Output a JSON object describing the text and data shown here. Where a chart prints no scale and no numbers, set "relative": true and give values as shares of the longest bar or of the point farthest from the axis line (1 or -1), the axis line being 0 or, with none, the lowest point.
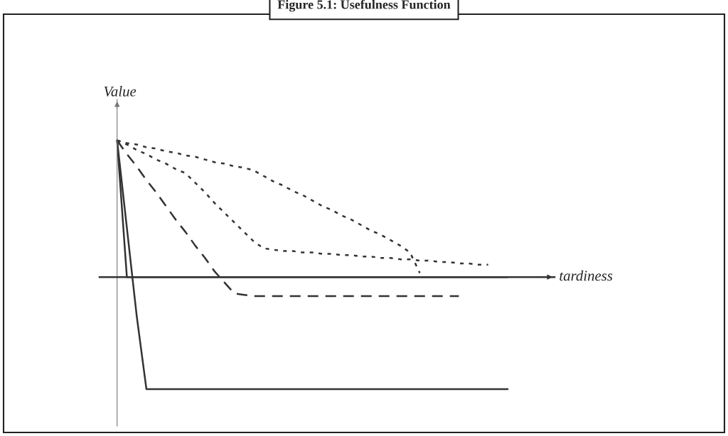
{
  "chart_data": {
    "type": "line",
    "title": "Figure 5.1: Usefulness Function",
    "xlabel": "tardiness",
    "ylabel": "Value",
    "relative": true,
    "legend": false,
    "marker": "none",
    "tick_labels": false,
    "categories": [
      null,
      null,
      null,
      null,
      null,
      null,
      null,
      null,
      null,
      null,
      null,
      null,
      null,
      null,
      null,
      null,
      null,
      null,
      null,
      null,
      null,
      null,
      null,
      null,
      null,
      null,
      null,
      null,
      null,
      null,
      null,
      null,
      null,
      null,
      null,
      null,
      null,
      null,
      null,
      null,
      null
    ],
    "series": [
      {
        "color": "#333333",
        "line_style": "solid",
        "values": [
          1,
          0,
          0,
          0,
          0,
          0,
          0,
          0,
          0,
          0,
          0,
          0,
          0,
          0,
          0,
          0,
          0,
          0,
          0,
          0,
          0,
          0,
          0,
          0,
          0,
          0,
          0,
          0,
          0,
          0,
          0,
          0,
          0,
          0,
          0,
          0,
          0,
          0,
          0,
          0,
          0
        ]
      },
      {
        "color": "#333333",
        "line_style": "solid",
        "values": [
          1,
          0.36,
          -0.28,
          -0.82,
          -0.82,
          -0.82,
          -0.82,
          -0.82,
          -0.82,
          -0.82,
          -0.82,
          -0.82,
          -0.82,
          -0.82,
          -0.82,
          -0.82,
          -0.82,
          -0.82,
          -0.82,
          -0.82,
          -0.82,
          -0.82,
          -0.82,
          -0.82,
          -0.82,
          -0.82,
          -0.82,
          -0.82,
          -0.82,
          -0.82,
          -0.82,
          -0.82,
          -0.82,
          -0.82,
          -0.82,
          -0.82,
          -0.82,
          -0.82,
          -0.82,
          -0.82,
          -0.82
        ]
      },
      {
        "color": "#333333",
        "line_style": "dashed",
        "values": [
          1,
          0.9,
          0.81,
          0.71,
          0.62,
          0.52,
          0.42,
          0.33,
          0.23,
          0.14,
          0.04,
          -0.04,
          -0.12,
          -0.13,
          -0.14,
          -0.14,
          -0.14,
          -0.14,
          -0.14,
          -0.14,
          -0.14,
          -0.14,
          -0.14,
          -0.14,
          -0.14,
          -0.14,
          -0.14,
          -0.14,
          -0.14,
          -0.14,
          -0.14,
          -0.14,
          -0.14,
          -0.14,
          -0.14,
          -0.14,
          null,
          null,
          null,
          null,
          null
        ]
      },
      {
        "color": "#333333",
        "line_style": "dotted",
        "values": [
          1,
          0.97,
          0.93,
          0.9,
          0.86,
          0.83,
          0.79,
          0.76,
          0.69,
          0.62,
          0.54,
          0.47,
          0.4,
          0.33,
          0.26,
          0.21,
          0.2,
          0.19,
          0.19,
          0.18,
          0.18,
          0.17,
          0.17,
          0.16,
          0.16,
          0.15,
          0.15,
          0.14,
          0.14,
          0.13,
          0.13,
          0.12,
          0.12,
          0.11,
          0.11,
          0.1,
          0.1,
          0.09,
          0.09,
          null,
          null
        ]
      },
      {
        "color": "#333333",
        "line_style": "dotted",
        "values": [
          1,
          0.98,
          0.97,
          0.95,
          0.94,
          0.92,
          0.91,
          0.89,
          0.88,
          0.86,
          0.84,
          0.83,
          0.81,
          0.8,
          0.78,
          0.74,
          0.7,
          0.67,
          0.63,
          0.6,
          0.56,
          0.52,
          0.49,
          0.45,
          0.42,
          0.38,
          0.34,
          0.31,
          0.27,
          0.23,
          0.18,
          0.03,
          null,
          null,
          null,
          null,
          null,
          null,
          null,
          null,
          null
        ]
      }
    ]
  }
}
